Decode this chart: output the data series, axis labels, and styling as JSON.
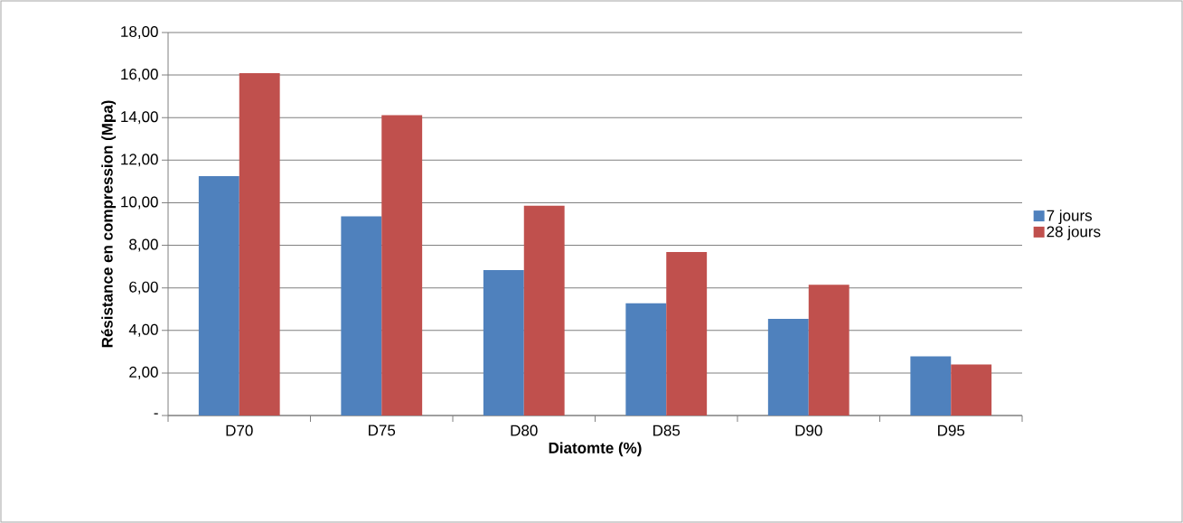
{
  "chart_data": {
    "type": "bar",
    "xlabel": "Diatomte (%)",
    "ylabel": "Résistance en compression (Mpa)",
    "categories": [
      "D70",
      "D75",
      "D80",
      "D85",
      "D90",
      "D95"
    ],
    "series": [
      {
        "name": "7 jours",
        "color": "#4f81bd",
        "values": [
          11.25,
          9.36,
          6.84,
          5.28,
          4.54,
          2.78
        ]
      },
      {
        "name": "28 jours",
        "color": "#c0504d",
        "values": [
          16.09,
          14.12,
          9.86,
          7.68,
          6.14,
          2.4
        ]
      }
    ],
    "ylim": [
      0,
      18
    ],
    "yticks": [
      {
        "value": 0,
        "label": "-"
      },
      {
        "value": 2,
        "label": "2,00"
      },
      {
        "value": 4,
        "label": "4,00"
      },
      {
        "value": 6,
        "label": "6,00"
      },
      {
        "value": 8,
        "label": "8,00"
      },
      {
        "value": 10,
        "label": "10,00"
      },
      {
        "value": 12,
        "label": "12,00"
      },
      {
        "value": 14,
        "label": "14,00"
      },
      {
        "value": 16,
        "label": "16,00"
      },
      {
        "value": 18,
        "label": "18,00"
      }
    ],
    "grid": "y",
    "legend": "right"
  }
}
